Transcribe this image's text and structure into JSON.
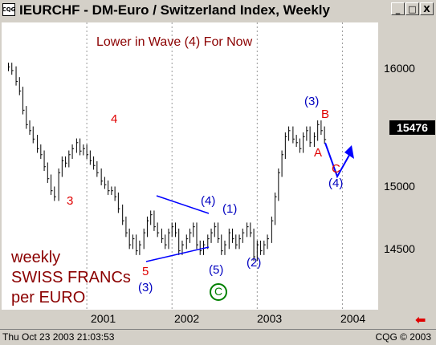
{
  "window": {
    "icon_text": "CQG",
    "title": "IEURCHF - DM-Euro / Switzerland Index, Weekly",
    "buttons": {
      "minimize": "_",
      "maximize": "□",
      "close": "X"
    }
  },
  "chart_data": {
    "type": "bar",
    "title": "Lower in Wave (4) For Now",
    "y_ticks": [
      "16000",
      "15500",
      "15000",
      "14500"
    ],
    "x_ticks": [
      "2001",
      "2002",
      "2003",
      "2004"
    ],
    "current_price": "15476",
    "ylim": [
      14060,
      16450
    ],
    "series": [
      {
        "x": [
          2000.08,
          2000.12,
          2000.17,
          2000.21,
          2000.25,
          2000.29,
          2000.33,
          2000.37,
          2000.42,
          2000.46,
          2000.5,
          2000.54,
          2000.58,
          2000.62,
          2000.67,
          2000.71,
          2000.75,
          2000.79,
          2000.83,
          2000.88,
          2000.92,
          2000.96,
          2001.0,
          2001.04,
          2001.08,
          2001.12,
          2001.17,
          2001.21,
          2001.25,
          2001.29,
          2001.33,
          2001.37,
          2001.42,
          2001.46,
          2001.5,
          2001.54,
          2001.58,
          2001.62,
          2001.67,
          2001.71,
          2001.75,
          2001.79,
          2001.83,
          2001.88,
          2001.92,
          2001.96,
          2002.0,
          2002.04,
          2002.08,
          2002.12,
          2002.17,
          2002.21,
          2002.25,
          2002.29,
          2002.33,
          2002.37,
          2002.42,
          2002.46,
          2002.5,
          2002.54,
          2002.58,
          2002.62,
          2002.67,
          2002.71,
          2002.75,
          2002.79,
          2002.83,
          2002.88,
          2002.92,
          2002.96,
          2003.0,
          2003.04,
          2003.08,
          2003.12,
          2003.17,
          2003.21,
          2003.25,
          2003.29,
          2003.33,
          2003.37,
          2003.42,
          2003.46,
          2003.5,
          2003.54,
          2003.58,
          2003.62,
          2003.67,
          2003.71,
          2003.75,
          2003.79
        ],
        "values": [
          16080,
          16050,
          15960,
          15880,
          15720,
          15600,
          15550,
          15480,
          15400,
          15350,
          15250,
          15150,
          15050,
          15000,
          15200,
          15300,
          15280,
          15350,
          15400,
          15450,
          15380,
          15400,
          15350,
          15300,
          15260,
          15200,
          15130,
          15100,
          15050,
          15050,
          15000,
          14900,
          14800,
          14700,
          14600,
          14650,
          14550,
          14600,
          14700,
          14800,
          14850,
          14750,
          14700,
          14650,
          14600,
          14700,
          14750,
          14700,
          14550,
          14600,
          14650,
          14700,
          14750,
          14600,
          14550,
          14600,
          14650,
          14700,
          14750,
          14650,
          14550,
          14600,
          14700,
          14650,
          14600,
          14650,
          14700,
          14750,
          14700,
          14500,
          14600,
          14550,
          14600,
          14650,
          14800,
          15000,
          15200,
          15350,
          15500,
          15550,
          15480,
          15450,
          15400,
          15500,
          15550,
          15450,
          15500,
          15600,
          15550,
          15476
        ]
      }
    ]
  },
  "annotations": {
    "w4": "4",
    "w3": "3",
    "w5": "5",
    "w3b": "(3)",
    "w4b": "(4)",
    "w1b": "(1)",
    "w5b": "(5)",
    "w2b": "(2)",
    "C_circle": "C",
    "w3c": "(3)",
    "B": "B",
    "A": "A",
    "C": "C",
    "w4c": "(4)"
  },
  "side_label": {
    "line1": "weekly",
    "line2": "SWISS FRANCs",
    "line3": "per EURO"
  },
  "colors": {
    "bars": "#000000",
    "blue_lines": "#0000ff",
    "wave_red": "#e00000",
    "wave_blue": "#0000c0",
    "circle_green": "#008000",
    "title_red": "#8b0000"
  },
  "status": {
    "timestamp": "Thu Oct 23 2003 21:03:53",
    "copyright": "CQG © 2003"
  }
}
